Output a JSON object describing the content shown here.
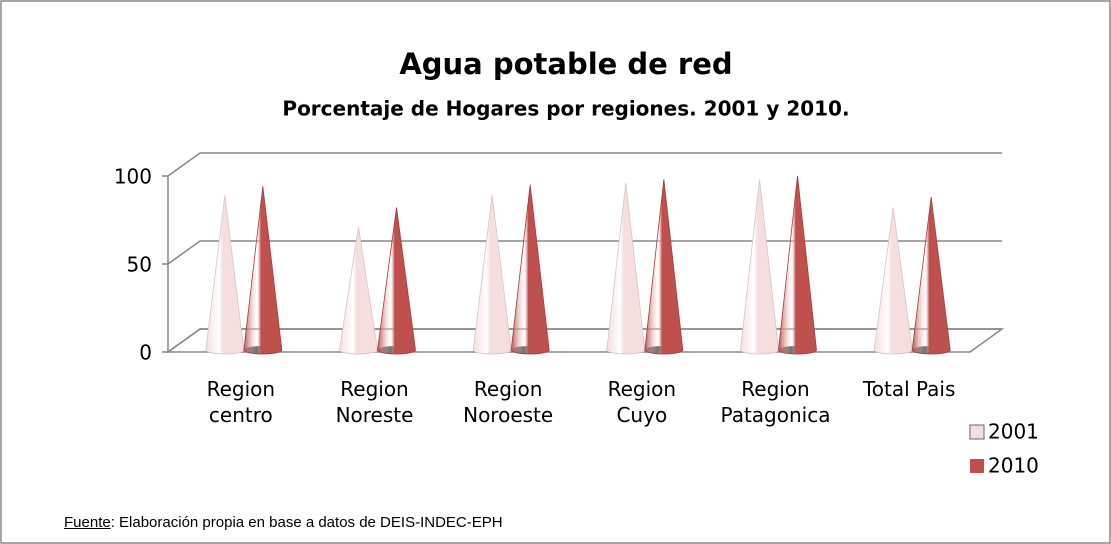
{
  "chart_data": {
    "type": "cone",
    "title": "Agua potable de red",
    "subtitle": "Porcentaje de Hogares por regiones. 2001 y 2010.",
    "categories": [
      "Region\ncentro",
      "Region\nNoreste",
      "Region\nNoroeste",
      "Region\nCuyo",
      "Region\nPatagonica",
      "Total Pais"
    ],
    "series": [
      {
        "name": "2001",
        "color": "#f5dede",
        "values": [
          88,
          70,
          88,
          95,
          97,
          81
        ]
      },
      {
        "name": "2010",
        "color": "#c0504d",
        "values": [
          93,
          81,
          94,
          97,
          99,
          87
        ]
      }
    ],
    "ylim": [
      0,
      100
    ],
    "yticks": [
      0,
      50,
      100
    ],
    "grid": true,
    "legend": "right",
    "footnote": {
      "source_label": "Fuente",
      "text": ": Elaboración propia en base a datos de DEIS-INDEC-EPH"
    }
  }
}
